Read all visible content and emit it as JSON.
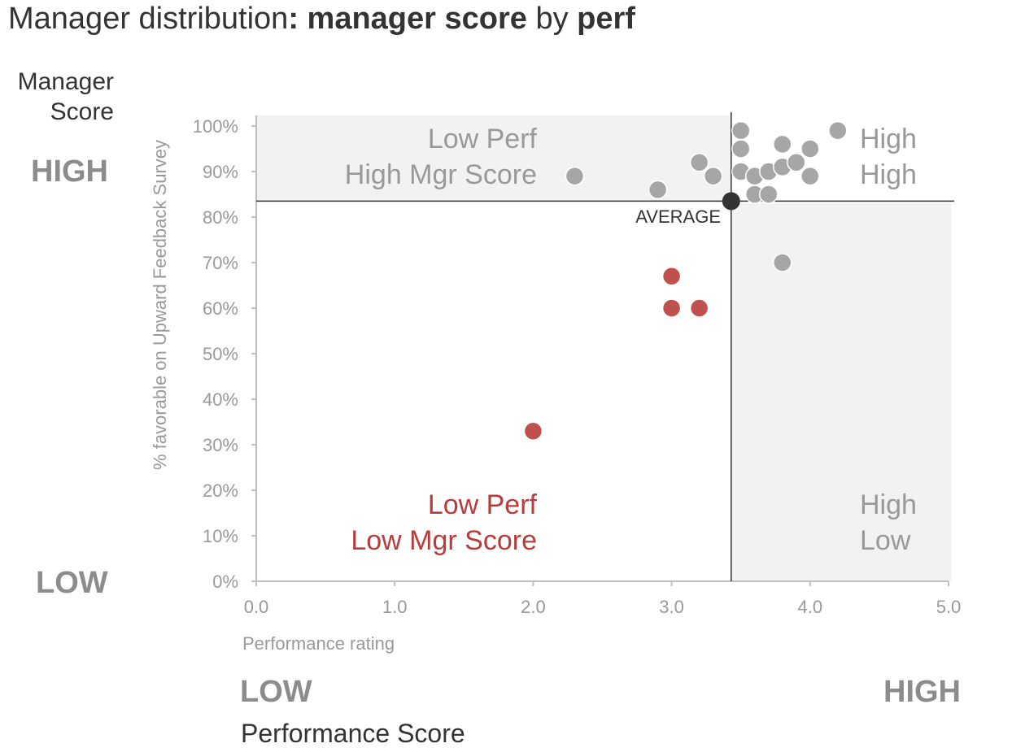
{
  "title": {
    "part1": "Manager distribution",
    "part2": ": manager score",
    "part3": " by ",
    "part4": "perf"
  },
  "left_label": {
    "line1": "Manager",
    "line2": "Score"
  },
  "left_high": "HIGH",
  "left_low": "LOW",
  "bottom_low": "LOW",
  "bottom_high": "HIGH",
  "bottom_label": "Performance Score",
  "chart_data": {
    "type": "scatter",
    "xlabel": "Performance rating",
    "ylabel": "% favorable on Upward Feedback Survey",
    "xlim": [
      0,
      5
    ],
    "ylim": [
      0,
      100
    ],
    "x_ticks": [
      "0.0",
      "1.0",
      "2.0",
      "3.0",
      "4.0",
      "5.0"
    ],
    "y_ticks": [
      "0%",
      "10%",
      "20%",
      "30%",
      "40%",
      "50%",
      "60%",
      "70%",
      "80%",
      "90%",
      "100%"
    ],
    "average": {
      "x": 3.43,
      "y": 83.5,
      "label": "AVERAGE"
    },
    "quadrant_labels": {
      "top_left": [
        "Low Perf",
        "High Mgr Score"
      ],
      "top_right": [
        "High",
        "High"
      ],
      "bottom_left": [
        "Low Perf",
        "Low Mgr Score"
      ],
      "bottom_right": [
        "High",
        "Low"
      ]
    },
    "points": [
      {
        "x": 2.3,
        "y": 89,
        "group": "grey"
      },
      {
        "x": 2.9,
        "y": 86,
        "group": "grey"
      },
      {
        "x": 3.2,
        "y": 92,
        "group": "grey"
      },
      {
        "x": 3.3,
        "y": 89,
        "group": "grey"
      },
      {
        "x": 3.5,
        "y": 99,
        "group": "grey"
      },
      {
        "x": 3.5,
        "y": 95,
        "group": "grey"
      },
      {
        "x": 3.5,
        "y": 90,
        "group": "grey"
      },
      {
        "x": 3.6,
        "y": 89,
        "group": "grey"
      },
      {
        "x": 3.6,
        "y": 85,
        "group": "grey"
      },
      {
        "x": 3.7,
        "y": 90,
        "group": "grey"
      },
      {
        "x": 3.7,
        "y": 85,
        "group": "grey"
      },
      {
        "x": 3.8,
        "y": 96,
        "group": "grey"
      },
      {
        "x": 3.8,
        "y": 91,
        "group": "grey"
      },
      {
        "x": 3.8,
        "y": 70,
        "group": "grey"
      },
      {
        "x": 3.9,
        "y": 92,
        "group": "grey"
      },
      {
        "x": 4.0,
        "y": 95,
        "group": "grey"
      },
      {
        "x": 4.0,
        "y": 89,
        "group": "grey"
      },
      {
        "x": 4.2,
        "y": 99,
        "group": "grey"
      },
      {
        "x": 3.0,
        "y": 67,
        "group": "red"
      },
      {
        "x": 3.0,
        "y": 60,
        "group": "red"
      },
      {
        "x": 3.2,
        "y": 60,
        "group": "red"
      },
      {
        "x": 2.0,
        "y": 33,
        "group": "red"
      }
    ],
    "colors": {
      "grey_point": "#a6a6a6",
      "red_point": "#c0504d",
      "average_point": "#333333",
      "quadrant_shade": "#f2f2f2",
      "axis_text": "#999999",
      "red_text": "#b83c3c",
      "grey_text": "#999999"
    }
  }
}
